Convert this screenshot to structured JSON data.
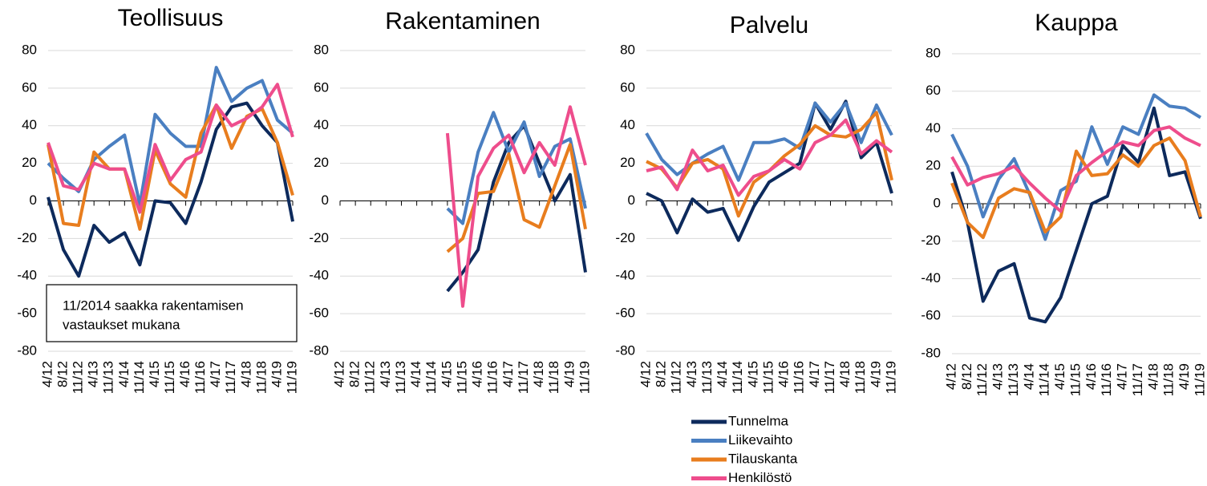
{
  "chart_data": [
    {
      "type": "line",
      "title": "Teollisuus",
      "categories": [
        "4/12",
        "8/12",
        "11/12",
        "4/13",
        "11/13",
        "4/14",
        "11/14",
        "4/15",
        "11/15",
        "4/16",
        "11/16",
        "4/17",
        "11/17",
        "4/18",
        "11/18",
        "4/19",
        "11/19"
      ],
      "series": [
        {
          "name": "Tunnelma",
          "color": "#0d2a5c",
          "values": [
            2,
            -26,
            -40,
            -13,
            -22,
            -17,
            -34,
            0,
            -1,
            -12,
            10,
            38,
            50,
            52,
            40,
            31,
            -11
          ]
        },
        {
          "name": "Liikevaihto",
          "color": "#4a7fc1",
          "values": [
            20,
            12,
            5,
            22,
            29,
            35,
            -2,
            46,
            36,
            29,
            29,
            71,
            53,
            60,
            64,
            43,
            36
          ]
        },
        {
          "name": "Tilauskanta",
          "color": "#e87d1e",
          "values": [
            30,
            -12,
            -13,
            26,
            17,
            17,
            -15,
            27,
            9,
            2,
            36,
            51,
            28,
            45,
            49,
            31,
            3
          ]
        },
        {
          "name": "Henkilöstö",
          "color": "#ee4d8c",
          "values": [
            31,
            8,
            6,
            20,
            17,
            17,
            -6,
            30,
            11,
            22,
            26,
            51,
            40,
            44,
            50,
            62,
            34
          ]
        }
      ],
      "ylim": [
        -80,
        80
      ],
      "yticks": [
        -80,
        -60,
        -40,
        -20,
        0,
        20,
        40,
        60,
        80
      ],
      "grid": true,
      "annotation": [
        "11/2014 saakka rakentamisen",
        "vastaukset mukana"
      ]
    },
    {
      "type": "line",
      "title": "Rakentaminen",
      "categories": [
        "4/12",
        "8/12",
        "11/12",
        "4/13",
        "11/13",
        "4/14",
        "11/14",
        "4/15",
        "11/15",
        "4/16",
        "11/16",
        "4/17",
        "11/17",
        "4/18",
        "11/18",
        "4/19",
        "11/19"
      ],
      "series": [
        {
          "name": "Tunnelma",
          "color": "#0d2a5c",
          "values": [
            null,
            null,
            null,
            null,
            null,
            null,
            null,
            -48,
            -38,
            -26,
            10,
            31,
            40,
            20,
            0,
            14,
            -38
          ]
        },
        {
          "name": "Liikevaihto",
          "color": "#4a7fc1",
          "values": [
            null,
            null,
            null,
            null,
            null,
            null,
            null,
            -4,
            -12,
            26,
            47,
            26,
            42,
            13,
            29,
            33,
            -4
          ]
        },
        {
          "name": "Tilauskanta",
          "color": "#e87d1e",
          "values": [
            null,
            null,
            null,
            null,
            null,
            null,
            null,
            -27,
            -20,
            4,
            5,
            25,
            -10,
            -14,
            8,
            30,
            -15
          ]
        },
        {
          "name": "Henkilöstö",
          "color": "#ee4d8c",
          "values": [
            null,
            null,
            null,
            null,
            null,
            null,
            null,
            36,
            -56,
            13,
            28,
            35,
            15,
            31,
            19,
            50,
            19
          ]
        }
      ],
      "ylim": [
        -80,
        80
      ],
      "yticks": [
        -80,
        -60,
        -40,
        -20,
        0,
        20,
        40,
        60,
        80
      ],
      "grid": true
    },
    {
      "type": "line",
      "title": "Palvelu",
      "categories": [
        "4/12",
        "8/12",
        "11/12",
        "4/13",
        "11/13",
        "4/14",
        "11/14",
        "4/15",
        "11/15",
        "4/16",
        "11/16",
        "4/17",
        "11/17",
        "4/18",
        "11/18",
        "4/19",
        "11/19"
      ],
      "series": [
        {
          "name": "Tunnelma",
          "color": "#0d2a5c",
          "values": [
            4,
            0,
            -17,
            1,
            -6,
            -4,
            -21,
            -3,
            10,
            15,
            20,
            52,
            38,
            53,
            23,
            31,
            4
          ]
        },
        {
          "name": "Liikevaihto",
          "color": "#4a7fc1",
          "values": [
            36,
            22,
            14,
            20,
            25,
            29,
            11,
            31,
            31,
            33,
            28,
            52,
            42,
            52,
            31,
            51,
            35
          ]
        },
        {
          "name": "Tilauskanta",
          "color": "#e87d1e",
          "values": [
            21,
            17,
            7,
            20,
            22,
            17,
            -8,
            10,
            16,
            24,
            30,
            40,
            35,
            34,
            38,
            47,
            11
          ]
        },
        {
          "name": "Henkilöstö",
          "color": "#ee4d8c",
          "values": [
            16,
            18,
            6,
            27,
            16,
            19,
            3,
            13,
            16,
            22,
            17,
            31,
            35,
            43,
            25,
            32,
            26
          ]
        }
      ],
      "ylim": [
        -80,
        80
      ],
      "yticks": [
        -80,
        -60,
        -40,
        -20,
        0,
        20,
        40,
        60,
        80
      ],
      "grid": true
    },
    {
      "type": "line",
      "title": "Kauppa",
      "categories": [
        "4/12",
        "8/12",
        "11/12",
        "4/13",
        "11/13",
        "4/14",
        "11/14",
        "4/15",
        "11/15",
        "4/16",
        "11/16",
        "4/17",
        "11/17",
        "4/18",
        "11/18",
        "4/19",
        "11/19"
      ],
      "series": [
        {
          "name": "Tunnelma",
          "color": "#0d2a5c",
          "values": [
            17,
            -10,
            -52,
            -36,
            -32,
            -61,
            -63,
            -50,
            -25,
            0,
            4,
            31,
            22,
            51,
            15,
            17,
            -8
          ]
        },
        {
          "name": "Liikevaihto",
          "color": "#4a7fc1",
          "values": [
            37,
            20,
            -7,
            13,
            24,
            5,
            -19,
            7,
            12,
            41,
            21,
            41,
            37,
            58,
            52,
            51,
            46
          ]
        },
        {
          "name": "Tilauskanta",
          "color": "#e87d1e",
          "values": [
            11,
            -10,
            -18,
            3,
            8,
            6,
            -15,
            -7,
            28,
            15,
            16,
            26,
            20,
            31,
            35,
            23,
            -7
          ]
        },
        {
          "name": "Henkilöstö",
          "color": "#ee4d8c",
          "values": [
            25,
            10,
            14,
            16,
            20,
            11,
            3,
            -4,
            15,
            22,
            28,
            33,
            31,
            39,
            41,
            35,
            31
          ]
        }
      ],
      "ylim": [
        -80,
        80
      ],
      "yticks": [
        -80,
        -60,
        -40,
        -20,
        0,
        20,
        40,
        60,
        80
      ],
      "grid": true
    }
  ]
}
